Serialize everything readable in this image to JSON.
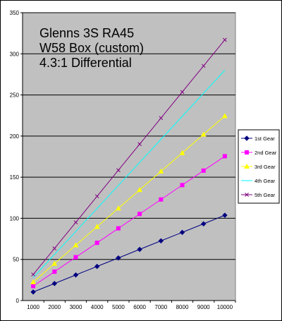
{
  "chart_data": {
    "type": "line",
    "title_lines": [
      "Glenns 3S RA45",
      "W58 Box (custom)",
      "4.3:1 Differential"
    ],
    "x": [
      1000,
      2000,
      3000,
      4000,
      5000,
      6000,
      7000,
      8000,
      9000,
      10000
    ],
    "xlabel": "",
    "ylabel": "",
    "ylim": [
      0,
      350
    ],
    "yticks": [
      0,
      50,
      100,
      150,
      200,
      250,
      300,
      350
    ],
    "grid": "horizontal",
    "legend_position": "right",
    "series": [
      {
        "name": "1st Gear",
        "color": "#000080",
        "marker": "diamond",
        "values": [
          10.4,
          20.7,
          31.1,
          41.5,
          51.8,
          62.2,
          72.6,
          82.9,
          93.3,
          103.7
        ]
      },
      {
        "name": "2nd Gear",
        "color": "#ff00ff",
        "marker": "square",
        "values": [
          17.6,
          35.1,
          52.7,
          70.2,
          87.8,
          105.3,
          122.9,
          140.4,
          158.0,
          175.5
        ]
      },
      {
        "name": "3rd Gear",
        "color": "#ffff00",
        "marker": "triangle",
        "values": [
          22.4,
          44.9,
          67.3,
          89.8,
          112.2,
          134.6,
          157.1,
          179.5,
          202.0,
          224.4
        ]
      },
      {
        "name": "4th Gear",
        "color": "#00ffff",
        "marker": "none",
        "values": [
          28.0,
          56.0,
          84.0,
          112.0,
          140.0,
          168.0,
          196.0,
          224.0,
          252.0,
          280.0
        ]
      },
      {
        "name": "5th Gear",
        "color": "#800080",
        "marker": "x",
        "values": [
          31.7,
          63.4,
          95.1,
          126.8,
          158.5,
          190.2,
          221.9,
          253.6,
          285.3,
          317.0
        ]
      }
    ]
  }
}
